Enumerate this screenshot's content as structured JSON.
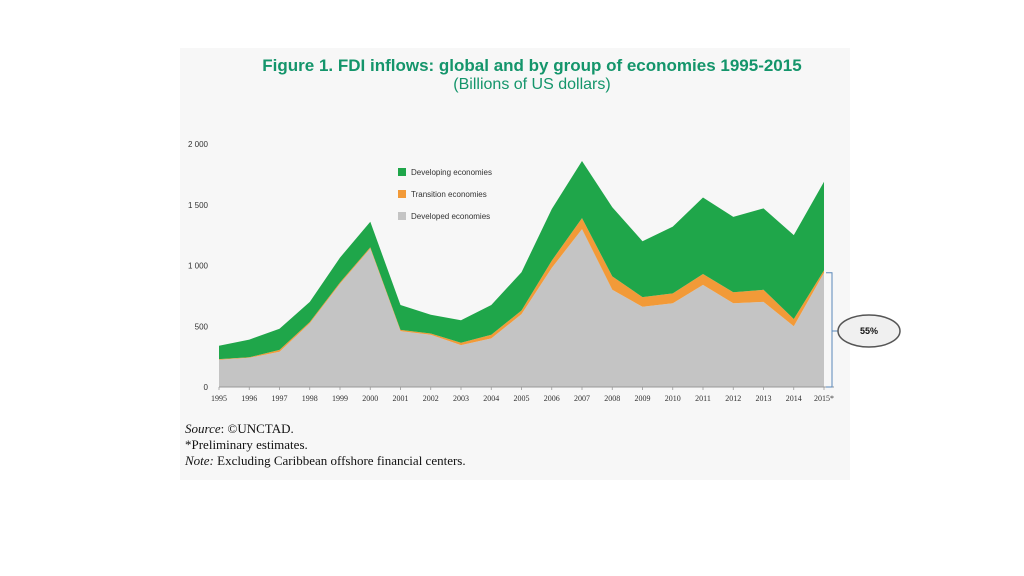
{
  "figure": {
    "title": "Figure 1.  FDI inflows: global and by group of economies 1995-2015",
    "subtitle": "(Billions of US dollars)"
  },
  "colors": {
    "developing": "#1fa64a",
    "transition": "#f29a38",
    "developed": "#c4c4c4",
    "title": "#14956b"
  },
  "chart_data": {
    "type": "area",
    "stacked": true,
    "categories": [
      "1995",
      "1996",
      "1997",
      "1998",
      "1999",
      "2000",
      "2001",
      "2002",
      "2003",
      "2004",
      "2005",
      "2006",
      "2007",
      "2008",
      "2009",
      "2010",
      "2011",
      "2012",
      "2013",
      "2014",
      "2015*"
    ],
    "series": [
      {
        "name": "Developed economies",
        "values": [
          225,
          240,
          290,
          525,
          850,
          1140,
          460,
          430,
          345,
          400,
          600,
          980,
          1300,
          800,
          660,
          690,
          840,
          690,
          700,
          500,
          940
        ]
      },
      {
        "name": "Transition economies",
        "values": [
          5,
          5,
          15,
          10,
          10,
          10,
          10,
          10,
          20,
          30,
          30,
          60,
          90,
          110,
          80,
          80,
          90,
          90,
          100,
          60,
          20
        ]
      },
      {
        "name": "Developing economies",
        "values": [
          110,
          145,
          175,
          165,
          205,
          210,
          205,
          155,
          185,
          245,
          315,
          425,
          470,
          570,
          460,
          550,
          630,
          620,
          670,
          690,
          730
        ]
      }
    ],
    "legend": [
      "Developing economies",
      "Transition economies",
      "Developed economies"
    ],
    "legend_position": "top-left",
    "yticks": [
      "0",
      "500",
      "1 000",
      "1 500",
      "2 000"
    ],
    "ylim": [
      0,
      2000
    ],
    "grid": false,
    "annotation": "55%"
  },
  "notes": {
    "source_label": "Source",
    "source_text": ": ©UNCTAD.",
    "prelim": "*Preliminary estimates.",
    "note_label": "Note:",
    "note_text": " Excluding Caribbean offshore financial centers."
  }
}
